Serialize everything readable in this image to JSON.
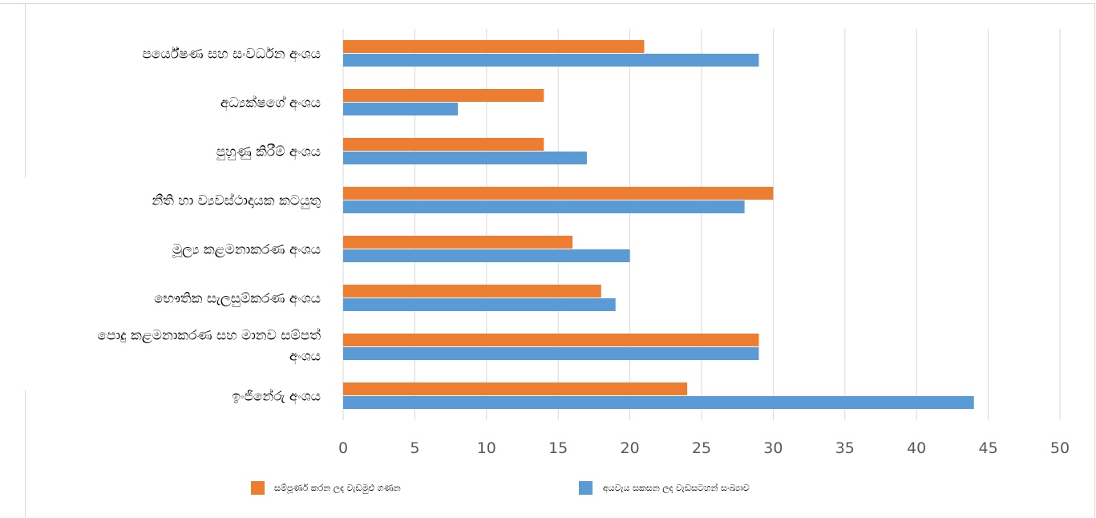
{
  "chart_data": {
    "type": "bar",
    "orientation": "horizontal",
    "categories": [
      "පර්යේෂණ සහ සංවර්ධන අංශය",
      "අධ්‍යක්ෂගේ අංශය",
      "පුහුණු කිරීම් අංශය",
      "නීති හා ව්‍යවස්ථාදායක කටයුතු",
      "මූල්‍ය කළමනාකරණ අංශය",
      "භෞතික සැලසුම්කරණ අංශය",
      "පොදු කළමනාකරණ සහ මානව සම්පත් අංශය",
      "ඉංජිනේරු  අංශය"
    ],
    "category_lines": [
      [
        "පර්යේෂණ සහ සංවර්ධන අංශය"
      ],
      [
        "අධ්‍යක්ෂගේ අංශය"
      ],
      [
        "පුහුණු කිරීම් අංශය"
      ],
      [
        "නීති හා ව්‍යවස්ථාදායක කටයුතු"
      ],
      [
        "මූල්‍ය කළමනාකරණ අංශය"
      ],
      [
        "භෞතික සැලසුම්කරණ අංශය"
      ],
      [
        "පොදු කළමනාකරණ සහ මානව සම්පත්",
        "අංශය"
      ],
      [
        "ඉංජිනේරු  අංශය"
      ]
    ],
    "series": [
      {
        "name": "සම්පූර්ණ කරන ලද වැඩමුළු ගණන",
        "color": "#ed7d31",
        "values": [
          21,
          14,
          14,
          30,
          16,
          18,
          29,
          24
        ]
      },
      {
        "name": "අයවැය සකසන ලද වැඩසටහන් සංඛ්‍යාව",
        "color": "#5b9bd5",
        "values": [
          29,
          8,
          17,
          28,
          20,
          19,
          29,
          44
        ]
      }
    ],
    "xlim": [
      0,
      50
    ],
    "x_ticks": [
      "0",
      "5",
      "10",
      "15",
      "20",
      "25",
      "30",
      "35",
      "40",
      "45",
      "50"
    ],
    "grid": true,
    "legend_position": "bottom",
    "title": "",
    "xlabel": "",
    "ylabel": ""
  }
}
